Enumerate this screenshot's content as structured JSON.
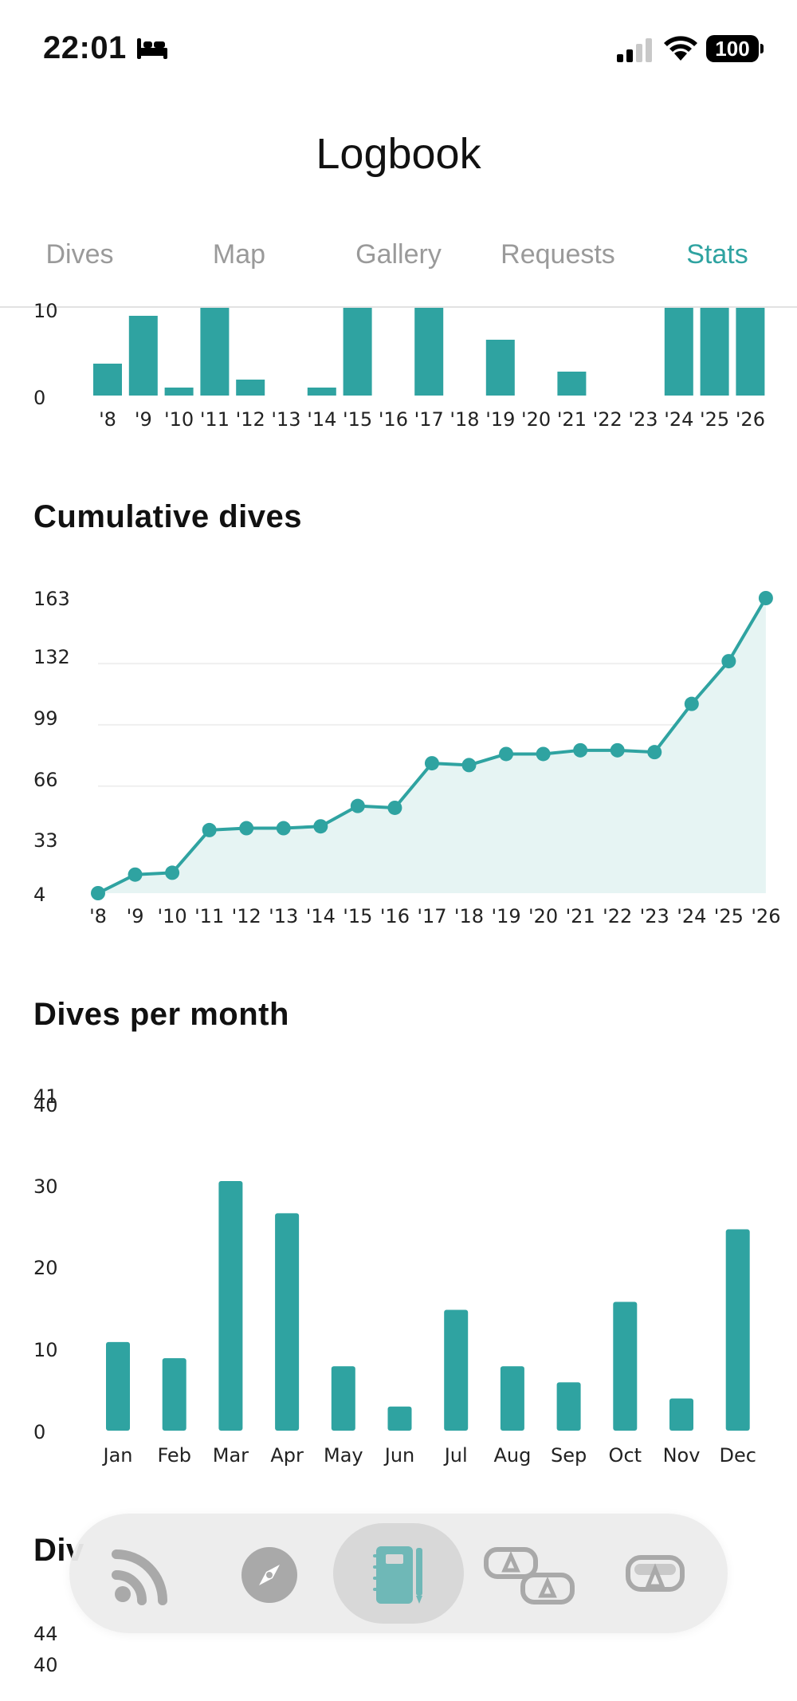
{
  "status_bar": {
    "time": "22:01",
    "battery": "100"
  },
  "header": {
    "title": "Logbook"
  },
  "tabs": [
    {
      "label": "Dives",
      "active": false
    },
    {
      "label": "Map",
      "active": false
    },
    {
      "label": "Gallery",
      "active": false
    },
    {
      "label": "Requests",
      "active": false
    },
    {
      "label": "Stats",
      "active": true
    }
  ],
  "colors": {
    "accent": "#2fa3a1",
    "fill": "#e6f4f3",
    "tab_inactive": "#9a9a9a"
  },
  "sections": {
    "cumulative_title": "Cumulative dives",
    "monthly_title": "Dives per month",
    "next_title_partial": "Div"
  },
  "chart_data": [
    {
      "type": "bar",
      "note_visible": "partially scrolled out of view",
      "categories": [
        "'8",
        "'9",
        "'10",
        "'11",
        "'12",
        "'13",
        "'14",
        "'15",
        "'16",
        "'17",
        "'18",
        "'19",
        "'20",
        "'21",
        "'22",
        "'23",
        "'24",
        "'25",
        "'26"
      ],
      "values": [
        4,
        10,
        1,
        11,
        2,
        0,
        1,
        11,
        0,
        11,
        0,
        7,
        0,
        3,
        0,
        0,
        11,
        11,
        11
      ],
      "y_ticks": [
        "0",
        "10"
      ],
      "ylim": [
        0,
        11
      ]
    },
    {
      "type": "area",
      "title": "Cumulative dives",
      "categories": [
        "'8",
        "'9",
        "'10",
        "'11",
        "'12",
        "'13",
        "'14",
        "'15",
        "'16",
        "'17",
        "'18",
        "'19",
        "'20",
        "'21",
        "'22",
        "'23",
        "'24",
        "'25",
        "'26"
      ],
      "values": [
        4,
        14,
        15,
        38,
        39,
        39,
        40,
        51,
        50,
        74,
        73,
        79,
        79,
        81,
        81,
        80,
        106,
        129,
        163
      ],
      "y_ticks": [
        "4",
        "33",
        "66",
        "99",
        "132",
        "163"
      ],
      "ylim": [
        4,
        163
      ],
      "grid": true
    },
    {
      "type": "bar",
      "title": "Dives per month",
      "categories": [
        "Jan",
        "Feb",
        "Mar",
        "Apr",
        "May",
        "Jun",
        "Jul",
        "Aug",
        "Sep",
        "Oct",
        "Nov",
        "Dec"
      ],
      "values": [
        11,
        9,
        31,
        27,
        8,
        3,
        15,
        8,
        6,
        16,
        4,
        25
      ],
      "y_ticks": [
        "0",
        "10",
        "20",
        "30",
        "40",
        "41"
      ],
      "ylim": [
        0,
        41
      ]
    },
    {
      "type": "bar",
      "note_visible": "only top axis labels visible",
      "y_ticks": [
        "44",
        "40"
      ]
    }
  ],
  "bottom_nav": {
    "items": [
      {
        "icon": "feed-icon",
        "active": false
      },
      {
        "icon": "compass-icon",
        "active": false
      },
      {
        "icon": "logbook-icon",
        "active": true
      },
      {
        "icon": "buddies-icon",
        "active": false
      },
      {
        "icon": "diver-mask-icon",
        "active": false
      }
    ]
  }
}
